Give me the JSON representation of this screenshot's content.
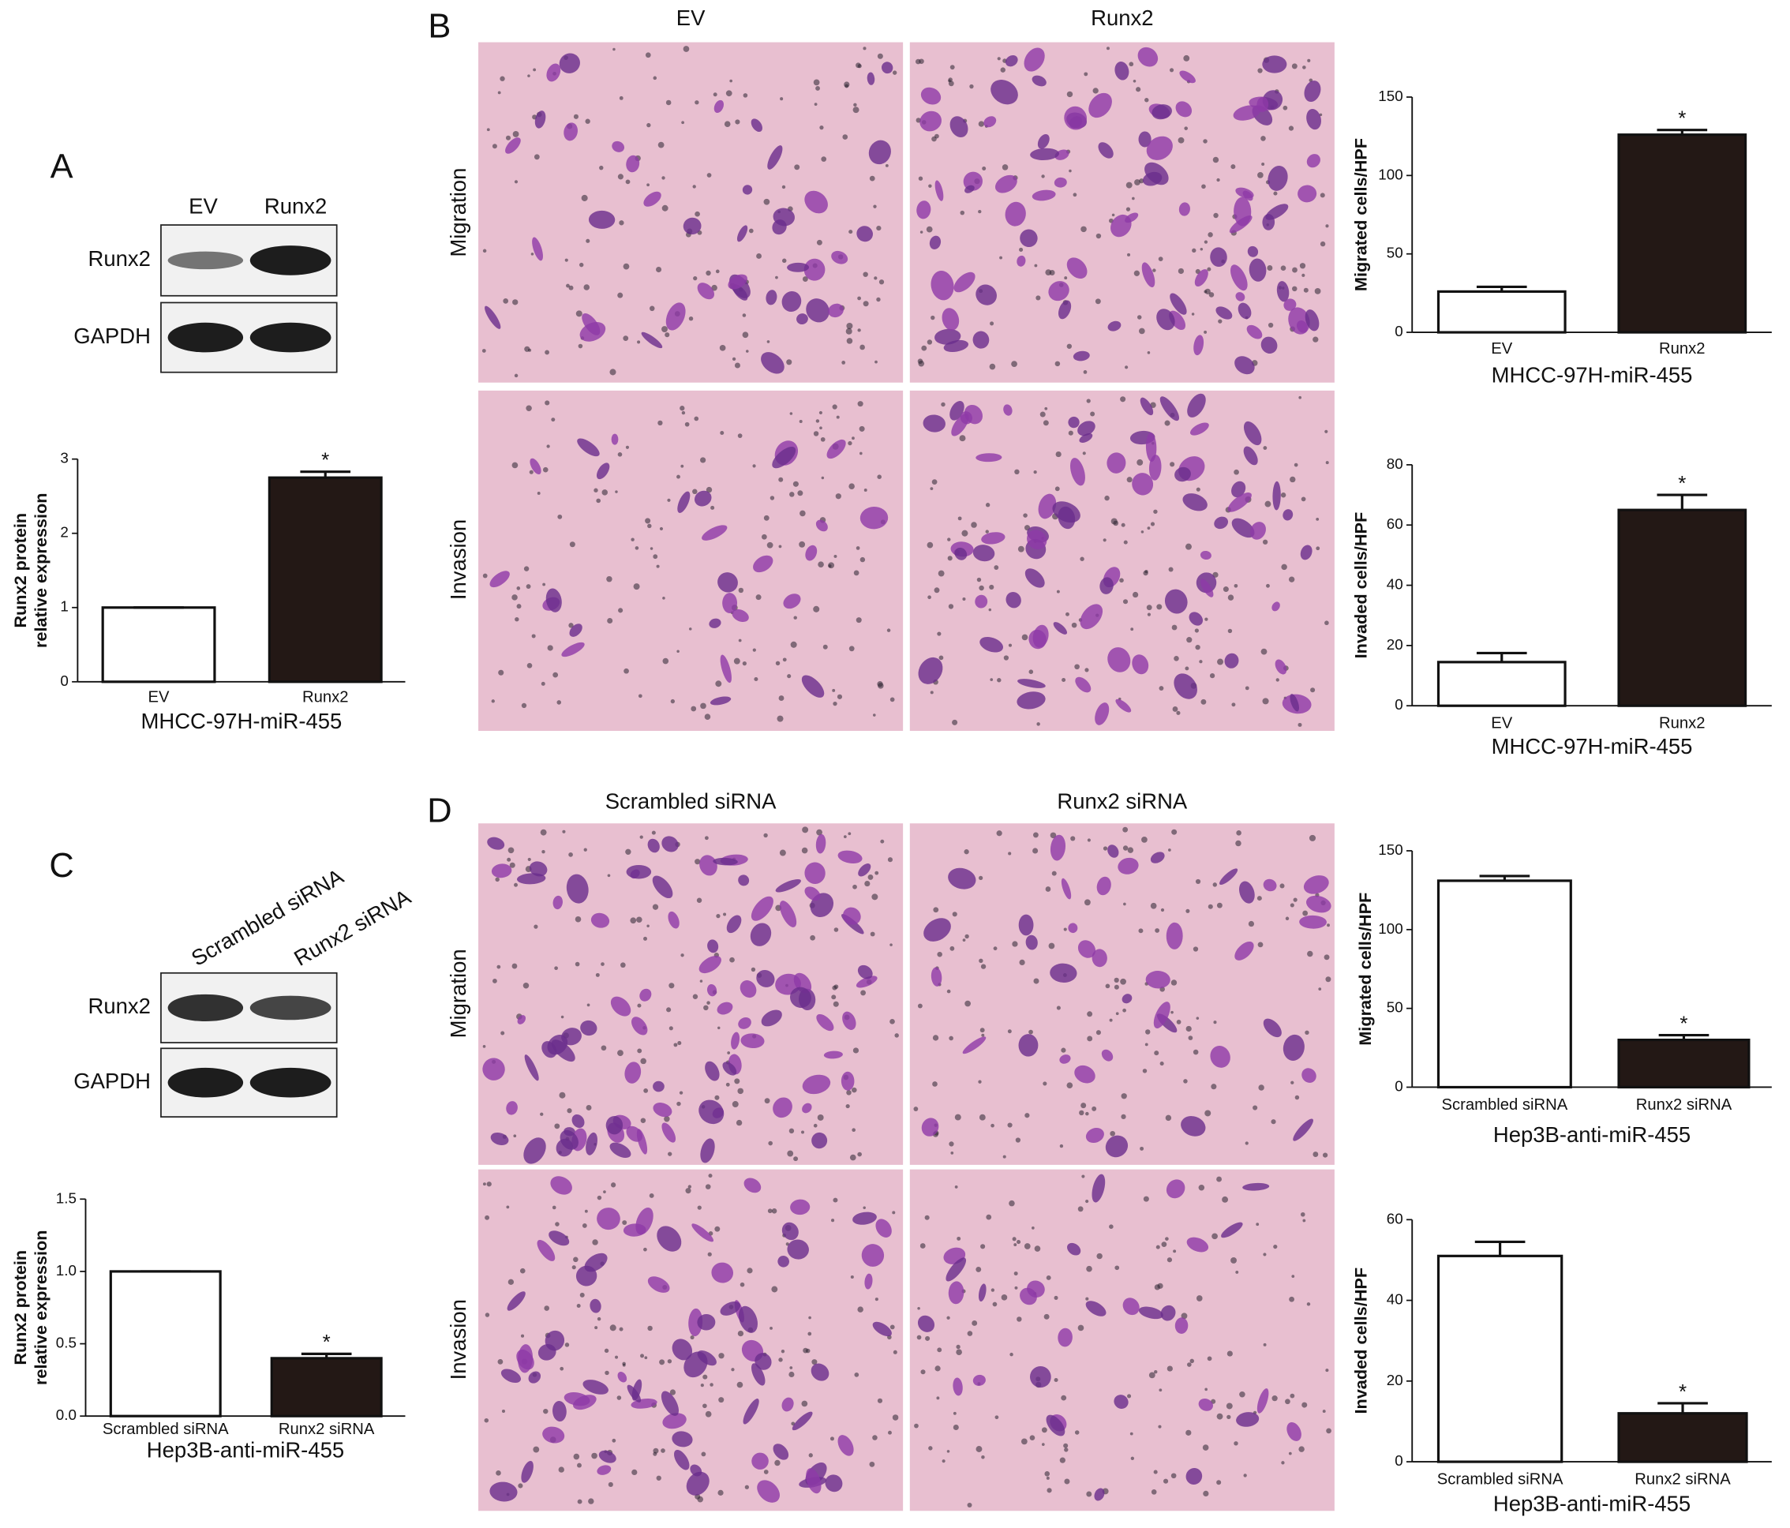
{
  "panel_labels": [
    "A",
    "B",
    "C",
    "D"
  ],
  "blots": [
    {
      "lanes": [
        "EV",
        "Runx2"
      ],
      "rows": [
        "Runx2",
        "GAPDH"
      ]
    },
    {
      "lanes": [
        "Scrambled siRNA",
        "Runx2 siRNA"
      ],
      "rows": [
        "Runx2",
        "GAPDH"
      ]
    }
  ],
  "micrographs": [
    {
      "columns": [
        "EV",
        "Runx2"
      ],
      "rows": [
        "Migration",
        "Invasion"
      ]
    },
    {
      "columns": [
        "Scrambled siRNA",
        "Runx2 siRNA"
      ],
      "rows": [
        "Migration",
        "Invasion"
      ]
    }
  ],
  "chart_data": [
    {
      "type": "bar",
      "ylabel": [
        "Runx2 protein",
        "relative expression"
      ],
      "xlabel": "MHCC-97H-miR-455",
      "categories": [
        "EV",
        "Runx2"
      ],
      "values": [
        1,
        2.75
      ],
      "errors": [
        0,
        0.08
      ],
      "significance": [
        null,
        "*"
      ],
      "colors": [
        "#ffffff",
        "#231815"
      ],
      "ylim": [
        0,
        3
      ],
      "yticks": [
        0,
        1,
        2,
        3
      ]
    },
    {
      "type": "bar",
      "ylabel": [
        "Migrated cells/HPF"
      ],
      "xlabel": "MHCC-97H-miR-455",
      "categories": [
        "EV",
        "Runx2"
      ],
      "values": [
        26,
        126
      ],
      "errors": [
        3,
        3
      ],
      "significance": [
        null,
        "*"
      ],
      "colors": [
        "#ffffff",
        "#231815"
      ],
      "ylim": [
        0,
        150
      ],
      "yticks": [
        0,
        50,
        100,
        150
      ]
    },
    {
      "type": "bar",
      "ylabel": [
        "Invaded cells/HPF"
      ],
      "xlabel": "MHCC-97H-miR-455",
      "categories": [
        "EV",
        "Runx2"
      ],
      "values": [
        14.5,
        65
      ],
      "errors": [
        3,
        5
      ],
      "significance": [
        null,
        "*"
      ],
      "colors": [
        "#ffffff",
        "#231815"
      ],
      "ylim": [
        0,
        80
      ],
      "yticks": [
        0,
        20,
        40,
        60,
        80
      ]
    },
    {
      "type": "bar",
      "ylabel": [
        "Runx2 protein",
        "relative expression"
      ],
      "xlabel": "Hep3B-anti-miR-455",
      "categories": [
        "Scrambled siRNA",
        "Runx2 siRNA"
      ],
      "values": [
        1.0,
        0.4
      ],
      "errors": [
        0,
        0.03
      ],
      "significance": [
        null,
        "*"
      ],
      "colors": [
        "#ffffff",
        "#231815"
      ],
      "ylim": [
        0,
        1.5
      ],
      "yticks": [
        {
          "value": 0,
          "label": "0.0"
        },
        {
          "value": 0.5,
          "label": "0.5"
        },
        {
          "value": 1,
          "label": "1.0"
        },
        {
          "value": 1.5,
          "label": "1.5"
        }
      ]
    },
    {
      "type": "bar",
      "ylabel": [
        "Migrated cells/HPF"
      ],
      "xlabel": "Hep3B-anti-miR-455",
      "categories": [
        "Scrambled siRNA",
        "Runx2 siRNA"
      ],
      "values": [
        131,
        30
      ],
      "errors": [
        3,
        3
      ],
      "significance": [
        null,
        "*"
      ],
      "colors": [
        "#ffffff",
        "#231815"
      ],
      "ylim": [
        0,
        150
      ],
      "yticks": [
        0,
        50,
        100,
        150
      ]
    },
    {
      "type": "bar",
      "ylabel": [
        "Invaded cells/HPF"
      ],
      "xlabel": "Hep3B-anti-miR-455",
      "categories": [
        "Scrambled siRNA",
        "Runx2 siRNA"
      ],
      "values": [
        51,
        12
      ],
      "errors": [
        3.5,
        2.5
      ],
      "significance": [
        null,
        "*"
      ],
      "colors": [
        "#ffffff",
        "#231815"
      ],
      "ylim": [
        0,
        60
      ],
      "yticks": [
        0,
        20,
        40,
        60
      ]
    }
  ]
}
